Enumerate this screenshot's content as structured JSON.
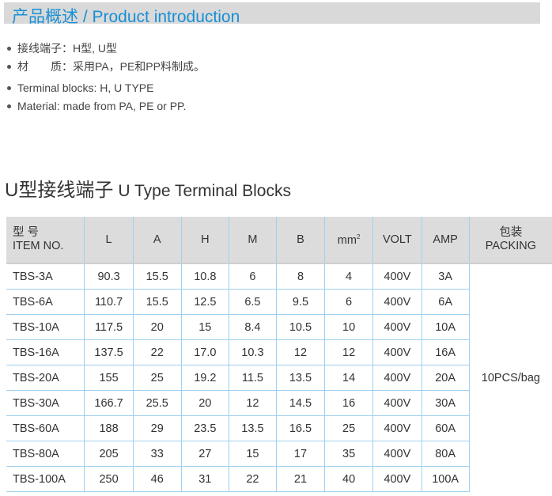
{
  "banner": {
    "title": "产品概述  / Product introduction"
  },
  "bullets": [
    "接线端子：H型, U型",
    "材　　质：采用PA，PE和PP料制成。",
    "Terminal blocks: H, U TYPE",
    "Material: made  from  PA, PE or PP."
  ],
  "section_title": {
    "cn": "U型接线端子",
    "en": "U Type Terminal Blocks"
  },
  "table": {
    "headers": {
      "item_cn": "型 号",
      "item_en": "ITEM NO.",
      "L": "L",
      "A": "A",
      "H": "H",
      "M": "M",
      "B": "B",
      "mm": "mm",
      "mm_sup": "2",
      "volt": "VOLT",
      "amp": "AMP",
      "pack_cn": "包装",
      "pack_en": "PACKING"
    },
    "packing": "10PCS/bag",
    "rows": [
      [
        "TBS-3A",
        "90.3",
        "15.5",
        "10.8",
        "6",
        "8",
        "4",
        "400V",
        "3A"
      ],
      [
        "TBS-6A",
        "110.7",
        "15.5",
        "12.5",
        "6.5",
        "9.5",
        "6",
        "400V",
        "6A"
      ],
      [
        "TBS-10A",
        "117.5",
        "20",
        "15",
        "8.4",
        "10.5",
        "10",
        "400V",
        "10A"
      ],
      [
        "TBS-16A",
        "137.5",
        "22",
        "17.0",
        "10.3",
        "12",
        "12",
        "400V",
        "16A"
      ],
      [
        "TBS-20A",
        "155",
        "25",
        "19.2",
        "11.5",
        "13.5",
        "14",
        "400V",
        "20A"
      ],
      [
        "TBS-30A",
        "166.7",
        "25.5",
        "20",
        "12",
        "14.5",
        "16",
        "400V",
        "30A"
      ],
      [
        "TBS-60A",
        "188",
        "29",
        "23.5",
        "13.5",
        "16.5",
        "25",
        "400V",
        "60A"
      ],
      [
        "TBS-80A",
        "205",
        "33",
        "27",
        "15",
        "17",
        "35",
        "400V",
        "80A"
      ],
      [
        "TBS-100A",
        "250",
        "46",
        "31",
        "22",
        "21",
        "40",
        "400V",
        "100A"
      ]
    ]
  }
}
